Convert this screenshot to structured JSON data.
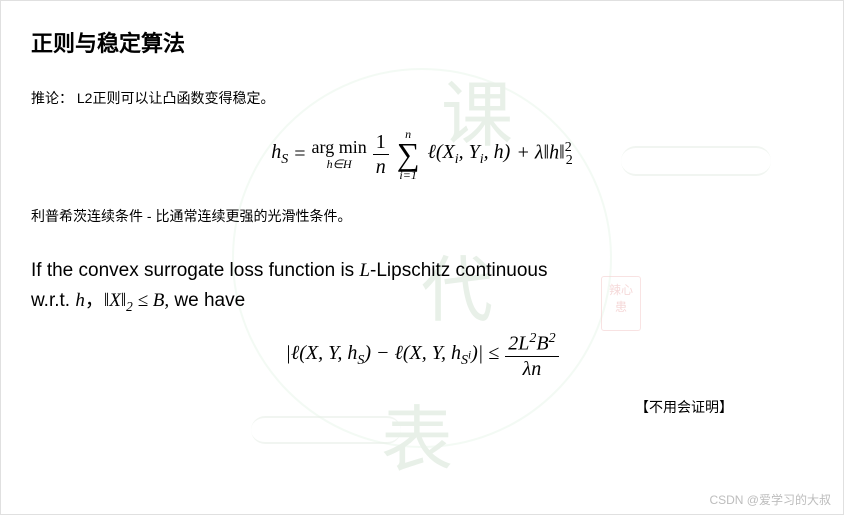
{
  "title": "正则与稳定算法",
  "corollary": "推论：  L2正则可以让凸函数变得稳定。",
  "equation1": {
    "lhs_var": "h",
    "lhs_sub": "S",
    "eq": "=",
    "argmin_top": "arg min",
    "argmin_bottom": "h∈H",
    "frac1_top": "1",
    "frac1_bottom": "n",
    "sum_top": "n",
    "sum_bottom": "i=1",
    "loss": "ℓ(X",
    "loss_i1": "i",
    "loss_mid": ", Y",
    "loss_i2": "i",
    "loss_end": ", h)",
    "plus": "+ λ‖h‖",
    "norm_sub": "2",
    "norm_sup": "2"
  },
  "lipschitz_label": "利普希茨连续条件 - 比通常连续更强的光滑性条件。",
  "theorem": {
    "part1": "If the convex surrogate loss function is ",
    "L": "L",
    "part2": "-Lipschitz continuous",
    "part3": "w.r.t. ",
    "h": "h",
    "comma": "，",
    "norm": "‖X‖",
    "norm_sub": "2",
    "leq": " ≤ B,",
    "part4": "  we have"
  },
  "equation2": {
    "abs_open": "|ℓ(X, Y, h",
    "S1": "S",
    "mid": ") − ℓ(X, Y, h",
    "S2_base": "S",
    "S2_sup": "i",
    "abs_close": ")| ≤",
    "frac_top_2": "2L",
    "frac_top_sup1": "2",
    "frac_top_B": "B",
    "frac_top_sup2": "2",
    "frac_bottom": "λn"
  },
  "note": "【不用会证明】",
  "attribution": "CSDN @爱学习的大叔",
  "watermark": {
    "char1": "课",
    "char2": "代",
    "char3": "表",
    "seal": "辣心患"
  }
}
